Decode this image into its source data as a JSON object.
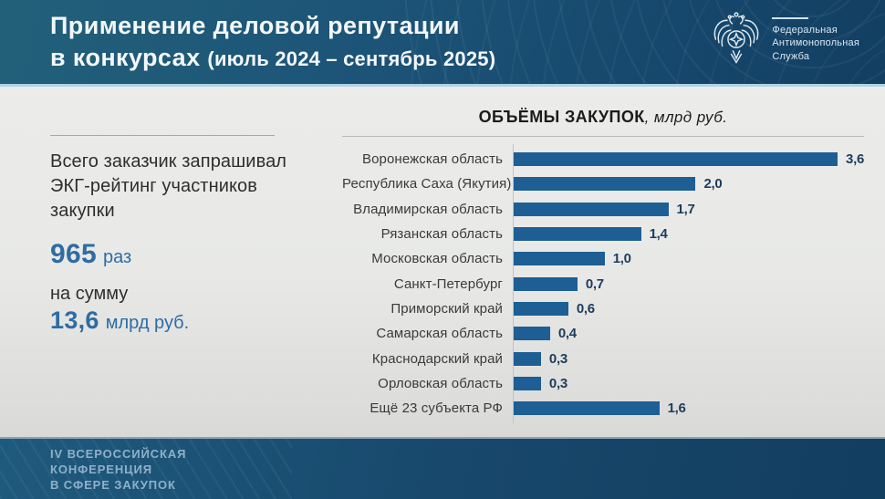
{
  "header": {
    "title_line1": "Применение деловой репутации",
    "title_line2_bold": "в конкурсах",
    "title_line2_paren": "(июль 2024 – сентябрь 2025)",
    "logo": {
      "emblem_icon": "double-headed-eagle-icon",
      "org_line1": "Федеральная",
      "org_line2": "Антимонопольная",
      "org_line3": "Служба"
    }
  },
  "left_panel": {
    "description": "Всего заказчик запрашивал ЭКГ-рейтинг участников закупки",
    "stat1_value": "965",
    "stat1_unit": "раз",
    "stat2_label": "на сумму",
    "stat2_value": "13,6",
    "stat2_unit": "млрд руб."
  },
  "chart_data": {
    "type": "bar",
    "orientation": "horizontal",
    "title": "ОБЪЁМЫ ЗАКУПОК",
    "title_unit": ", млрд руб.",
    "categories": [
      "Воронежская область",
      "Республика Саха (Якутия)",
      "Владимирская область",
      "Рязанская область",
      "Московская область",
      "Санкт-Петербург",
      "Приморский край",
      "Самарская область",
      "Краснодарский край",
      "Орловская область",
      "Ещё 23 субъекта РФ"
    ],
    "values": [
      3.6,
      2.0,
      1.7,
      1.4,
      1.0,
      0.7,
      0.6,
      0.4,
      0.3,
      0.3,
      1.6
    ],
    "value_labels": [
      "3,6",
      "2,0",
      "1,7",
      "1,4",
      "1,0",
      "0,7",
      "0,6",
      "0,4",
      "0,3",
      "0,3",
      "1,6"
    ],
    "xlim": [
      0,
      3.85
    ],
    "grid": false,
    "legend": "none",
    "bar_color": "#1d5e94",
    "value_label_color": "#1d3c5c"
  },
  "footer": {
    "line1": "IV ВСЕРОССИЙСКАЯ",
    "line2": "КОНФЕРЕНЦИЯ",
    "line3": "В СФЕРЕ ЗАКУПОК"
  },
  "colors": {
    "header_bg_start": "#226079",
    "header_bg_end": "#123f62",
    "header_edge_line": "#aed3e4",
    "body_bg": "#e8e9e7",
    "accent_blue": "#2e6ca3",
    "bar_blue": "#1d5e94",
    "footer_text": "#8fb0c8"
  }
}
